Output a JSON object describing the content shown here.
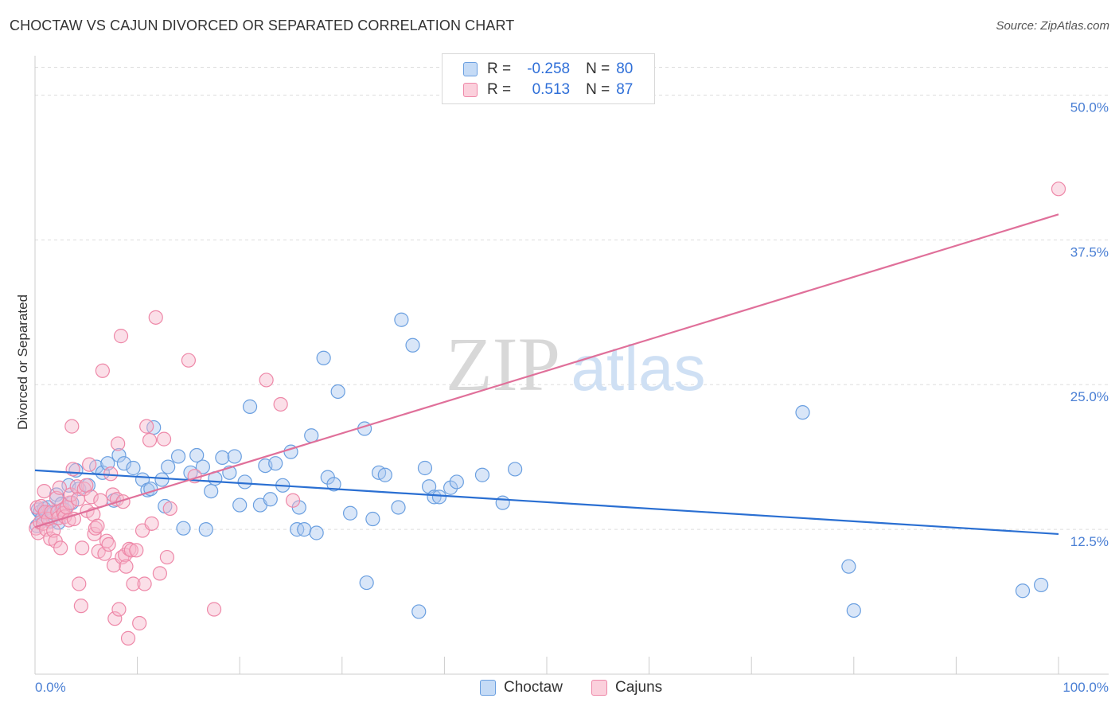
{
  "title": "CHOCTAW VS CAJUN DIVORCED OR SEPARATED CORRELATION CHART",
  "source": "Source: ZipAtlas.com",
  "watermark": {
    "zip": "ZIP",
    "atlas": "atlas"
  },
  "legend": {
    "rows": [
      {
        "r_label": "R =",
        "r_value": "-0.258",
        "n_label": "N =",
        "n_value": "80"
      },
      {
        "r_label": "R =",
        "r_value": "0.513",
        "n_label": "N =",
        "n_value": "87"
      }
    ]
  },
  "bottom_legend": [
    "Choctaw",
    "Cajuns"
  ],
  "colors": {
    "choctaw_fill": "#aac8f0",
    "choctaw_stroke": "#6a9fe0",
    "choctaw_line": "#2a6fd2",
    "cajun_fill": "#f7b8cc",
    "cajun_stroke": "#ee88a8",
    "cajun_line": "#e0709a",
    "tick": "#4a7fd4",
    "grid": "#dddddd"
  },
  "chart_data": {
    "type": "scatter",
    "title": "CHOCTAW VS CAJUN DIVORCED OR SEPARATED CORRELATION CHART",
    "xlabel": "",
    "ylabel": "Divorced or Separated",
    "xlim": [
      0,
      100
    ],
    "ylim": [
      0,
      53.4
    ],
    "y_ticks": [
      12.5,
      25.0,
      37.5,
      50.0
    ],
    "y_tick_labels": [
      "12.5%",
      "25.0%",
      "37.5%",
      "50.0%"
    ],
    "x_tick_labels": [
      "0.0%",
      "100.0%"
    ],
    "series": [
      {
        "name": "Choctaw",
        "r": -0.258,
        "n": 80,
        "trend": {
          "x": [
            0,
            100
          ],
          "y": [
            17.6,
            12.1
          ]
        },
        "points": [
          [
            0.2,
            12.8
          ],
          [
            0.3,
            14.2
          ],
          [
            0.5,
            14.0
          ],
          [
            0.7,
            13.5
          ],
          [
            0.9,
            14.3
          ],
          [
            1.1,
            13.9
          ],
          [
            1.3,
            14.4
          ],
          [
            1.5,
            13.2
          ],
          [
            1.8,
            13.9
          ],
          [
            2.1,
            15.5
          ],
          [
            2.3,
            13.1
          ],
          [
            2.6,
            14.7
          ],
          [
            2.9,
            14.2
          ],
          [
            3.3,
            16.3
          ],
          [
            3.6,
            14.8
          ],
          [
            4.0,
            17.6
          ],
          [
            4.3,
            16.0
          ],
          [
            5.2,
            16.3
          ],
          [
            6.0,
            17.9
          ],
          [
            6.6,
            17.4
          ],
          [
            7.1,
            18.2
          ],
          [
            7.7,
            15.0
          ],
          [
            8.2,
            18.9
          ],
          [
            8.7,
            18.2
          ],
          [
            9.6,
            17.8
          ],
          [
            10.5,
            16.8
          ],
          [
            11.0,
            15.9
          ],
          [
            11.3,
            16.0
          ],
          [
            11.6,
            21.3
          ],
          [
            12.4,
            16.8
          ],
          [
            12.7,
            14.5
          ],
          [
            13.0,
            17.9
          ],
          [
            14.0,
            18.8
          ],
          [
            14.5,
            12.6
          ],
          [
            15.2,
            17.4
          ],
          [
            15.8,
            18.9
          ],
          [
            16.4,
            17.9
          ],
          [
            16.7,
            12.5
          ],
          [
            17.2,
            15.8
          ],
          [
            17.6,
            16.9
          ],
          [
            18.3,
            18.7
          ],
          [
            19.0,
            17.4
          ],
          [
            19.5,
            18.8
          ],
          [
            20.0,
            14.6
          ],
          [
            20.5,
            16.6
          ],
          [
            21.0,
            23.1
          ],
          [
            22.0,
            14.6
          ],
          [
            22.5,
            18.0
          ],
          [
            23.0,
            15.1
          ],
          [
            23.5,
            18.2
          ],
          [
            24.2,
            16.3
          ],
          [
            25.0,
            19.2
          ],
          [
            25.6,
            12.5
          ],
          [
            25.8,
            14.4
          ],
          [
            26.3,
            12.5
          ],
          [
            27.0,
            20.6
          ],
          [
            27.5,
            12.2
          ],
          [
            28.2,
            27.3
          ],
          [
            28.6,
            17.0
          ],
          [
            29.2,
            16.4
          ],
          [
            29.6,
            24.4
          ],
          [
            30.8,
            13.9
          ],
          [
            32.2,
            21.2
          ],
          [
            32.4,
            7.9
          ],
          [
            33.0,
            13.4
          ],
          [
            33.6,
            17.4
          ],
          [
            34.2,
            17.2
          ],
          [
            35.5,
            14.4
          ],
          [
            35.8,
            30.6
          ],
          [
            36.9,
            28.4
          ],
          [
            37.5,
            5.4
          ],
          [
            38.1,
            17.8
          ],
          [
            38.5,
            16.2
          ],
          [
            39.0,
            15.3
          ],
          [
            39.5,
            15.3
          ],
          [
            40.6,
            16.1
          ],
          [
            41.2,
            16.6
          ],
          [
            43.7,
            17.2
          ],
          [
            45.7,
            14.8
          ],
          [
            46.9,
            17.7
          ],
          [
            75.0,
            22.6
          ],
          [
            79.5,
            9.3
          ],
          [
            80.0,
            5.5
          ],
          [
            96.5,
            7.2
          ],
          [
            98.3,
            7.7
          ]
        ]
      },
      {
        "name": "Cajuns",
        "r": 0.513,
        "n": 87,
        "trend": {
          "x": [
            0,
            100
          ],
          "y": [
            12.7,
            39.7
          ]
        },
        "points": [
          [
            0.1,
            12.6
          ],
          [
            0.2,
            14.4
          ],
          [
            0.3,
            12.2
          ],
          [
            0.5,
            13.1
          ],
          [
            0.6,
            14.5
          ],
          [
            0.8,
            13.0
          ],
          [
            0.9,
            15.8
          ],
          [
            1.0,
            14.0
          ],
          [
            1.1,
            12.5
          ],
          [
            1.3,
            13.4
          ],
          [
            1.5,
            11.7
          ],
          [
            1.6,
            14.0
          ],
          [
            1.8,
            12.4
          ],
          [
            2.0,
            11.5
          ],
          [
            2.1,
            15.2
          ],
          [
            2.2,
            14.0
          ],
          [
            2.3,
            13.5
          ],
          [
            2.4,
            16.1
          ],
          [
            2.5,
            10.9
          ],
          [
            2.7,
            14.2
          ],
          [
            2.8,
            13.9
          ],
          [
            2.9,
            13.6
          ],
          [
            3.1,
            14.4
          ],
          [
            3.3,
            13.3
          ],
          [
            3.4,
            14.8
          ],
          [
            3.5,
            15.5
          ],
          [
            3.6,
            21.4
          ],
          [
            3.7,
            17.7
          ],
          [
            3.8,
            13.4
          ],
          [
            4.1,
            16.2
          ],
          [
            4.2,
            15.1
          ],
          [
            4.3,
            7.8
          ],
          [
            4.5,
            5.9
          ],
          [
            4.6,
            10.9
          ],
          [
            4.8,
            16.0
          ],
          [
            5.0,
            16.3
          ],
          [
            5.1,
            14.1
          ],
          [
            5.3,
            18.1
          ],
          [
            5.5,
            15.3
          ],
          [
            5.7,
            13.8
          ],
          [
            5.8,
            12.1
          ],
          [
            5.9,
            12.6
          ],
          [
            6.1,
            12.8
          ],
          [
            6.2,
            10.6
          ],
          [
            6.4,
            15.0
          ],
          [
            6.6,
            26.2
          ],
          [
            6.8,
            10.4
          ],
          [
            7.0,
            11.5
          ],
          [
            7.2,
            11.2
          ],
          [
            7.4,
            17.3
          ],
          [
            7.6,
            15.5
          ],
          [
            7.7,
            9.4
          ],
          [
            7.8,
            4.8
          ],
          [
            8.0,
            15.1
          ],
          [
            8.1,
            19.9
          ],
          [
            8.2,
            5.6
          ],
          [
            8.4,
            29.2
          ],
          [
            8.5,
            10.1
          ],
          [
            8.6,
            14.9
          ],
          [
            8.8,
            10.3
          ],
          [
            8.9,
            9.3
          ],
          [
            9.1,
            3.1
          ],
          [
            9.2,
            10.8
          ],
          [
            9.4,
            10.7
          ],
          [
            9.6,
            7.8
          ],
          [
            9.9,
            10.7
          ],
          [
            10.2,
            4.4
          ],
          [
            10.5,
            12.4
          ],
          [
            10.7,
            7.8
          ],
          [
            10.9,
            21.4
          ],
          [
            11.2,
            20.2
          ],
          [
            11.4,
            13.0
          ],
          [
            11.8,
            30.8
          ],
          [
            12.2,
            8.7
          ],
          [
            12.6,
            20.3
          ],
          [
            12.9,
            10.1
          ],
          [
            13.2,
            14.3
          ],
          [
            15.0,
            27.1
          ],
          [
            15.6,
            17.1
          ],
          [
            17.5,
            5.6
          ],
          [
            22.6,
            25.4
          ],
          [
            24.0,
            23.3
          ],
          [
            25.2,
            15.0
          ],
          [
            100.0,
            41.9
          ]
        ]
      }
    ]
  }
}
